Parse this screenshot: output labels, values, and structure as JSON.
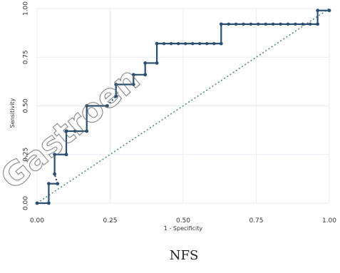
{
  "caption": "NFS",
  "watermark": "Gastroen",
  "chart_data": {
    "type": "line",
    "xlabel": "1 - Specificity",
    "ylabel": "Sensitivity",
    "xlim": [
      0,
      1
    ],
    "ylim": [
      0,
      1
    ],
    "x_ticks": [
      "0.00",
      "0.25",
      "0.50",
      "0.75",
      "1.00"
    ],
    "y_ticks": [
      "0.00",
      "0.25",
      "0.50",
      "0.75",
      "1.00"
    ],
    "grid": true,
    "colors": {
      "roc": "#2b4f72",
      "reference": "#4e8f74",
      "grid": "#e6eef3"
    },
    "series": [
      {
        "style": "step",
        "points": [
          [
            0.0,
            0.0
          ],
          [
            0.04,
            0.0
          ],
          [
            0.04,
            0.1
          ],
          [
            0.07,
            0.1
          ],
          [
            0.06,
            0.15
          ],
          [
            0.06,
            0.25
          ],
          [
            0.1,
            0.25
          ],
          [
            0.1,
            0.37
          ],
          [
            0.13,
            0.37
          ],
          [
            0.17,
            0.37
          ],
          [
            0.17,
            0.5
          ],
          [
            0.24,
            0.5
          ],
          [
            0.27,
            0.55
          ],
          [
            0.27,
            0.61
          ],
          [
            0.33,
            0.61
          ],
          [
            0.33,
            0.66
          ],
          [
            0.37,
            0.66
          ],
          [
            0.37,
            0.72
          ],
          [
            0.41,
            0.72
          ],
          [
            0.41,
            0.82
          ],
          [
            0.63,
            0.82
          ],
          [
            0.63,
            0.92
          ],
          [
            0.96,
            0.92
          ],
          [
            0.96,
            0.99
          ],
          [
            1.0,
            0.99
          ]
        ]
      },
      {
        "style": "reference",
        "points": [
          [
            0,
            0
          ],
          [
            1,
            1
          ]
        ]
      }
    ]
  }
}
